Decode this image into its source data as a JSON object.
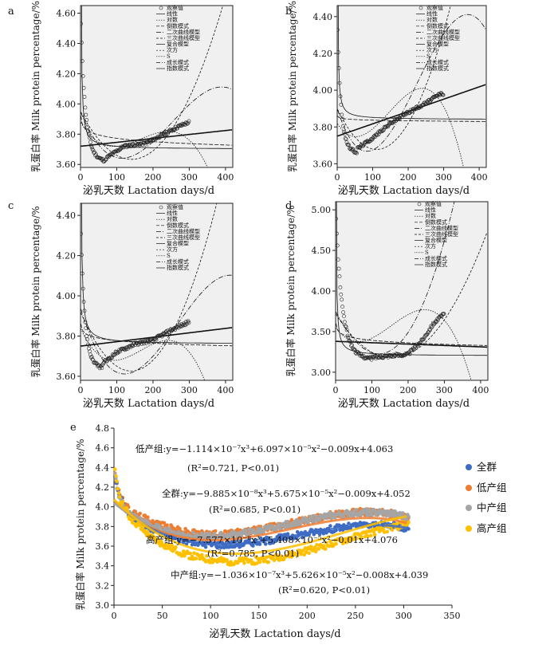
{
  "chart_data": [
    {
      "panel": "a",
      "type": "scatter",
      "xlabel": "泌乳天数  Lactation days/d",
      "ylabel": "乳蛋白率  Milk protein percentage/%",
      "xlim": [
        0,
        420
      ],
      "ylim": [
        3.58,
        4.65
      ],
      "xticks": [
        "0",
        "100",
        "200",
        "300",
        "400"
      ],
      "yticks": [
        "3.60",
        "3.80",
        "4.00",
        "4.20",
        "4.40",
        "4.60"
      ],
      "yticks_v": [
        3.6,
        3.8,
        4.0,
        4.2,
        4.4,
        4.6
      ],
      "legend": [
        "观察值",
        "线性",
        "对数",
        "倒数模式",
        "二次曲线模型",
        "三次曲线模型",
        "复合模型",
        "次方",
        "S",
        "成长模式",
        "指数模式"
      ],
      "obs": {
        "start": 4.6,
        "min_day": 70,
        "min": 3.64,
        "plateau": [
          [
            120,
            3.72
          ],
          [
            180,
            3.74
          ],
          [
            230,
            3.8
          ],
          [
            270,
            3.85
          ],
          [
            300,
            3.88
          ]
        ],
        "end_day": 300
      },
      "models": {
        "linear": [
          3.72,
          0.00026
        ],
        "cubic": [
          3.95,
          -0.006,
          3.4e-05,
          -4.5e-08
        ],
        "quad_up": [
          3.95,
          -0.0045,
          1.6e-05
        ],
        "cubic_down": [
          3.88,
          -0.004,
          3e-05,
          -6e-08
        ],
        "log": [
          3.92,
          -0.032
        ],
        "inverse": [
          3.7,
          2.0
        ]
      }
    },
    {
      "panel": "b",
      "type": "scatter",
      "xlabel": "泌乳天数  Lactation days/d",
      "ylabel": "乳蛋白率  Milk protein percentage/%",
      "xlim": [
        0,
        420
      ],
      "ylim": [
        3.58,
        4.46
      ],
      "xticks": [
        "0",
        "100",
        "200",
        "300",
        "400"
      ],
      "yticks": [
        "3.60",
        "3.80",
        "4.00",
        "4.20",
        "4.40"
      ],
      "yticks_v": [
        3.6,
        3.8,
        4.0,
        4.2,
        4.4
      ],
      "legend": [
        "观察值",
        "线性",
        "对数",
        "倒数模式",
        "二次曲线模型",
        "三次曲线模型",
        "复合模型",
        "次方",
        "S",
        "成长模式",
        "指数模式"
      ],
      "obs": {
        "start": 4.4,
        "min_day": 55,
        "min": 3.68,
        "plateau": [
          [
            100,
            3.74
          ],
          [
            150,
            3.82
          ],
          [
            200,
            3.88
          ],
          [
            250,
            3.93
          ],
          [
            290,
            3.98
          ]
        ],
        "end_day": 300
      },
      "models": {
        "linear": [
          3.75,
          0.00067
        ],
        "cubic": [
          3.9,
          -0.006,
          4.4e-05,
          -6.5e-08
        ],
        "quad_up": [
          3.9,
          -0.004,
          1.8e-05
        ],
        "cubic_down": [
          3.82,
          -0.003,
          3.5e-05,
          -8e-08
        ],
        "log": [
          3.86,
          -0.005
        ],
        "inverse": [
          3.84,
          1.2
        ]
      }
    },
    {
      "panel": "c",
      "type": "scatter",
      "xlabel": "泌乳天数  Lactation days/d",
      "ylabel": "乳蛋白率  Milk protein percentage/%",
      "xlim": [
        0,
        420
      ],
      "ylim": [
        3.58,
        4.46
      ],
      "xticks": [
        "0",
        "100",
        "200",
        "300",
        "400"
      ],
      "yticks": [
        "3.60",
        "3.80",
        "4.00",
        "4.20",
        "4.40"
      ],
      "yticks_v": [
        3.6,
        3.8,
        4.0,
        4.2,
        4.4
      ],
      "legend": [
        "观察值",
        "线性",
        "对数",
        "倒数模式",
        "二次曲线模型",
        "三次曲线模型",
        "复合模型",
        "次方",
        "S",
        "成长模式",
        "指数模式"
      ],
      "obs": {
        "start": 4.38,
        "min_day": 60,
        "min": 3.66,
        "plateau": [
          [
            100,
            3.72
          ],
          [
            150,
            3.76
          ],
          [
            200,
            3.78
          ],
          [
            250,
            3.83
          ],
          [
            300,
            3.87
          ]
        ],
        "end_day": 300
      },
      "models": {
        "linear": [
          3.75,
          0.00022
        ],
        "cubic": [
          3.94,
          -0.006,
          3.2e-05,
          -4e-08
        ],
        "quad_up": [
          3.92,
          -0.0042,
          1.5e-05
        ],
        "cubic_down": [
          3.84,
          -0.004,
          3e-05,
          -6e-08
        ],
        "log": [
          3.86,
          -0.018
        ],
        "inverse": [
          3.76,
          1.8
        ]
      }
    },
    {
      "panel": "d",
      "type": "scatter",
      "xlabel": "泌乳天数  Lactation days/d",
      "ylabel": "乳蛋白率  Milk protein percentage/%",
      "xlim": [
        0,
        420
      ],
      "ylim": [
        2.9,
        5.1
      ],
      "xticks": [
        "0",
        "100",
        "200",
        "300",
        "400"
      ],
      "yticks": [
        "3.00",
        "3.50",
        "4.00",
        "4.50",
        "5.00"
      ],
      "yticks_v": [
        3.0,
        3.5,
        4.0,
        4.5,
        5.0
      ],
      "legend": [
        "观察值",
        "线性",
        "对数",
        "倒数模式",
        "二次曲线模型",
        "三次曲线模型",
        "复合模型",
        "次方",
        "S",
        "成长模式",
        "指数模式"
      ],
      "obs": {
        "start": 4.98,
        "min_day": 100,
        "min": 3.18,
        "plateau": [
          [
            140,
            3.2
          ],
          [
            200,
            3.22
          ],
          [
            240,
            3.4
          ],
          [
            270,
            3.6
          ],
          [
            300,
            3.72
          ]
        ],
        "end_day": 300
      },
      "models": {
        "linear": [
          3.38,
          -0.00017
        ],
        "cubic": [
          3.75,
          -0.0085,
          3.2e-05,
          2e-08
        ],
        "quad_up": [
          3.72,
          -0.007,
          2.25e-05
        ],
        "cubic_down": [
          3.55,
          -0.006,
          6e-05,
          -1.3e-07
        ],
        "log": [
          3.6,
          -0.045
        ],
        "inverse": [
          3.2,
          3.0
        ]
      }
    },
    {
      "panel": "e",
      "type": "scatter",
      "xlabel": "泌乳天数  Lactation days/d",
      "ylabel": "乳蛋白率  Milk protein percentage/%",
      "xlim": [
        0,
        350
      ],
      "ylim": [
        3.0,
        4.8
      ],
      "xticks": [
        "0",
        "50",
        "100",
        "150",
        "200",
        "250",
        "300",
        "350"
      ],
      "yticks": [
        "3.0",
        "3.2",
        "3.4",
        "3.6",
        "3.8",
        "4.0",
        "4.2",
        "4.4",
        "4.6",
        "4.8"
      ],
      "yticks_v": [
        3.0,
        3.2,
        3.4,
        3.6,
        3.8,
        4.0,
        4.2,
        4.4,
        4.6,
        4.8
      ],
      "series": [
        {
          "name": "全群",
          "color": "#3e6cc4",
          "coef": [
            4.052,
            -0.009,
            5.675e-05,
            -9.885e-08
          ],
          "obs_offset": 0.0
        },
        {
          "name": "低产组",
          "color": "#ee7d31",
          "coef": [
            4.063,
            -0.009,
            6.097e-05,
            -1.114e-07
          ],
          "obs_offset": 0.06
        },
        {
          "name": "中产组",
          "color": "#a5a5a5",
          "coef": [
            4.039,
            -0.008,
            5.626e-05,
            -1.036e-07
          ],
          "obs_offset": 0.0
        },
        {
          "name": "高产组",
          "color": "#fec000",
          "coef": [
            4.076,
            -0.01,
            5.408e-05,
            -7.577e-08
          ],
          "obs_offset": -0.08
        }
      ],
      "equations": [
        {
          "text": "低产组:y=−1.114×10⁻⁷x³+6.097×10⁻⁵x²−0.009x+4.063",
          "r2": "(R²=0.721, P<0.01)"
        },
        {
          "text": "全群:y=−9.885×10⁻⁸x³+5.675×10⁻⁵x²−0.009x+4.052",
          "r2": "(R²=0.685, P<0.01)"
        },
        {
          "text": "高产组:y=−7.577×10⁻⁸x³+5.408×10⁻⁵x²−0.01x+4.076",
          "r2": "(R²=0.785, P<0.01)"
        },
        {
          "text": "中产组:y=−1.036×10⁻⁷x³+5.626×10⁻⁵x²−0.008x+4.039",
          "r2": "(R²=0.620, P<0.01)"
        }
      ]
    }
  ]
}
